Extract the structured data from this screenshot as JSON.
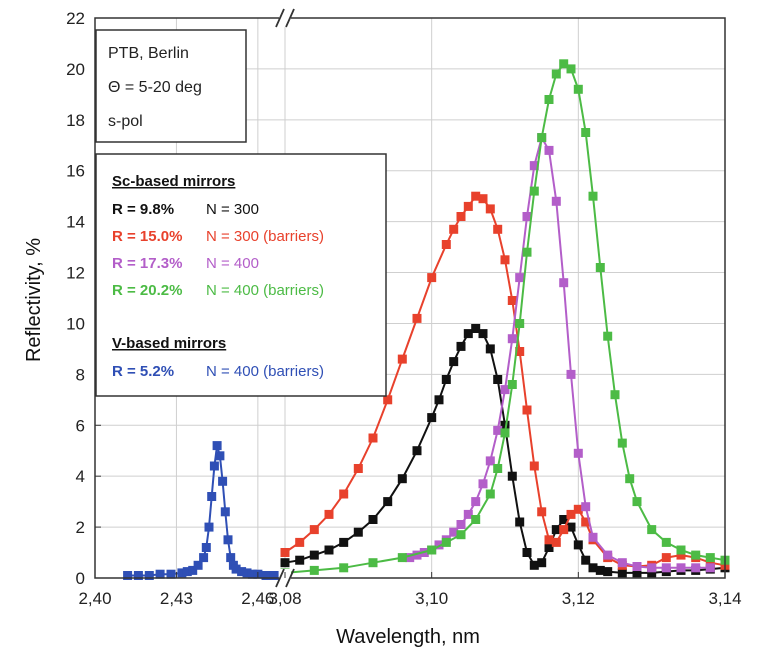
{
  "chart_data": {
    "type": "line",
    "xlabel": "Wavelength, nm",
    "ylabel": "Reflectivity, %",
    "ylim": [
      0,
      22
    ],
    "yticks": [
      "0",
      "2",
      "4",
      "6",
      "8",
      "10",
      "12",
      "14",
      "16",
      "18",
      "20",
      "22"
    ],
    "x_segments": [
      {
        "range": [
          2.4,
          2.47
        ],
        "ticks": [
          "2,40",
          "2,43",
          "2,46"
        ],
        "tick_values": [
          2.4,
          2.43,
          2.46
        ]
      },
      {
        "range": [
          3.08,
          3.14
        ],
        "ticks": [
          "3,08",
          "3,10",
          "3,12",
          "3,14"
        ],
        "tick_values": [
          3.08,
          3.1,
          3.12,
          3.14
        ]
      }
    ],
    "axis_break": "//",
    "grid": true,
    "info_box": [
      "PTB, Berlin",
      "Θ = 5-20 deg",
      "s-pol"
    ],
    "legend": {
      "placement": "top-left",
      "groups": [
        {
          "heading": "Sc-based mirrors",
          "entries": [
            {
              "r": "R = 9.8%",
              "n": "N = 300",
              "color": "#111111"
            },
            {
              "r": "R = 15.0%",
              "n": "N = 300 (barriers)",
              "color": "#e8412c"
            },
            {
              "r": "R = 17.3%",
              "n": "N = 400",
              "color": "#b35ec9"
            },
            {
              "r": "R = 20.2%",
              "n": "N = 400 (barriers)",
              "color": "#4cbb45"
            }
          ]
        },
        {
          "heading": "V-based mirrors",
          "entries": [
            {
              "r": "R = 5.2%",
              "n": "N = 400 (barriers)",
              "color": "#2f4fb5"
            }
          ]
        }
      ]
    },
    "series": [
      {
        "color": "#2f4fb5",
        "segment": 0,
        "x": [
          2.412,
          2.416,
          2.42,
          2.424,
          2.428,
          2.432,
          2.434,
          2.436,
          2.438,
          2.44,
          2.441,
          2.442,
          2.443,
          2.444,
          2.445,
          2.446,
          2.447,
          2.448,
          2.449,
          2.45,
          2.451,
          2.452,
          2.454,
          2.456,
          2.458,
          2.46,
          2.463,
          2.466
        ],
        "y": [
          0.1,
          0.1,
          0.1,
          0.15,
          0.15,
          0.2,
          0.25,
          0.3,
          0.5,
          0.8,
          1.2,
          2.0,
          3.2,
          4.4,
          5.2,
          4.8,
          3.8,
          2.6,
          1.5,
          0.8,
          0.5,
          0.35,
          0.25,
          0.2,
          0.15,
          0.15,
          0.1,
          0.1
        ]
      },
      {
        "color": "#111111",
        "segment": 1,
        "x": [
          3.08,
          3.082,
          3.084,
          3.086,
          3.088,
          3.09,
          3.092,
          3.094,
          3.096,
          3.098,
          3.1,
          3.101,
          3.102,
          3.103,
          3.104,
          3.105,
          3.106,
          3.107,
          3.108,
          3.109,
          3.11,
          3.111,
          3.112,
          3.113,
          3.114,
          3.115,
          3.116,
          3.117,
          3.118,
          3.119,
          3.12,
          3.121,
          3.122,
          3.123,
          3.124,
          3.126,
          3.128,
          3.13,
          3.132,
          3.134,
          3.136,
          3.138,
          3.14
        ],
        "y": [
          0.6,
          0.7,
          0.9,
          1.1,
          1.4,
          1.8,
          2.3,
          3.0,
          3.9,
          5.0,
          6.3,
          7.0,
          7.8,
          8.5,
          9.1,
          9.6,
          9.8,
          9.6,
          9.0,
          7.8,
          6.0,
          4.0,
          2.2,
          1.0,
          0.5,
          0.6,
          1.2,
          1.9,
          2.3,
          2.0,
          1.3,
          0.7,
          0.4,
          0.3,
          0.25,
          0.2,
          0.2,
          0.2,
          0.25,
          0.3,
          0.3,
          0.35,
          0.4
        ]
      },
      {
        "color": "#e8412c",
        "segment": 1,
        "x": [
          3.08,
          3.082,
          3.084,
          3.086,
          3.088,
          3.09,
          3.092,
          3.094,
          3.096,
          3.098,
          3.1,
          3.102,
          3.103,
          3.104,
          3.105,
          3.106,
          3.107,
          3.108,
          3.109,
          3.11,
          3.111,
          3.112,
          3.113,
          3.114,
          3.115,
          3.116,
          3.117,
          3.118,
          3.119,
          3.12,
          3.121,
          3.122,
          3.124,
          3.126,
          3.128,
          3.13,
          3.132,
          3.134,
          3.136,
          3.138,
          3.14
        ],
        "y": [
          1.0,
          1.4,
          1.9,
          2.5,
          3.3,
          4.3,
          5.5,
          7.0,
          8.6,
          10.2,
          11.8,
          13.1,
          13.7,
          14.2,
          14.6,
          15.0,
          14.9,
          14.5,
          13.7,
          12.5,
          10.9,
          8.9,
          6.6,
          4.4,
          2.6,
          1.5,
          1.4,
          1.9,
          2.5,
          2.7,
          2.2,
          1.5,
          0.8,
          0.5,
          0.45,
          0.5,
          0.8,
          0.9,
          0.8,
          0.6,
          0.5
        ]
      },
      {
        "color": "#b35ec9",
        "segment": 1,
        "x": [
          3.097,
          3.098,
          3.099,
          3.1,
          3.101,
          3.102,
          3.103,
          3.104,
          3.105,
          3.106,
          3.107,
          3.108,
          3.109,
          3.11,
          3.111,
          3.112,
          3.113,
          3.114,
          3.115,
          3.116,
          3.117,
          3.118,
          3.119,
          3.12,
          3.121,
          3.122,
          3.124,
          3.126,
          3.128,
          3.13,
          3.132,
          3.134,
          3.136,
          3.138
        ],
        "y": [
          0.8,
          0.9,
          1.0,
          1.1,
          1.3,
          1.5,
          1.8,
          2.1,
          2.5,
          3.0,
          3.7,
          4.6,
          5.8,
          7.4,
          9.4,
          11.8,
          14.2,
          16.2,
          17.3,
          16.8,
          14.8,
          11.6,
          8.0,
          4.9,
          2.8,
          1.6,
          0.9,
          0.6,
          0.45,
          0.4,
          0.4,
          0.4,
          0.4,
          0.4
        ]
      },
      {
        "color": "#4cbb45",
        "segment": 1,
        "x": [
          3.08,
          3.084,
          3.088,
          3.092,
          3.096,
          3.1,
          3.102,
          3.104,
          3.106,
          3.108,
          3.109,
          3.11,
          3.111,
          3.112,
          3.113,
          3.114,
          3.115,
          3.116,
          3.117,
          3.118,
          3.119,
          3.12,
          3.121,
          3.122,
          3.123,
          3.124,
          3.125,
          3.126,
          3.127,
          3.128,
          3.13,
          3.132,
          3.134,
          3.136,
          3.138,
          3.14
        ],
        "y": [
          0.2,
          0.3,
          0.4,
          0.6,
          0.8,
          1.1,
          1.4,
          1.7,
          2.3,
          3.3,
          4.3,
          5.7,
          7.6,
          10.0,
          12.8,
          15.2,
          17.3,
          18.8,
          19.8,
          20.2,
          20.0,
          19.2,
          17.5,
          15.0,
          12.2,
          9.5,
          7.2,
          5.3,
          3.9,
          3.0,
          1.9,
          1.4,
          1.1,
          0.9,
          0.8,
          0.7
        ]
      }
    ]
  }
}
